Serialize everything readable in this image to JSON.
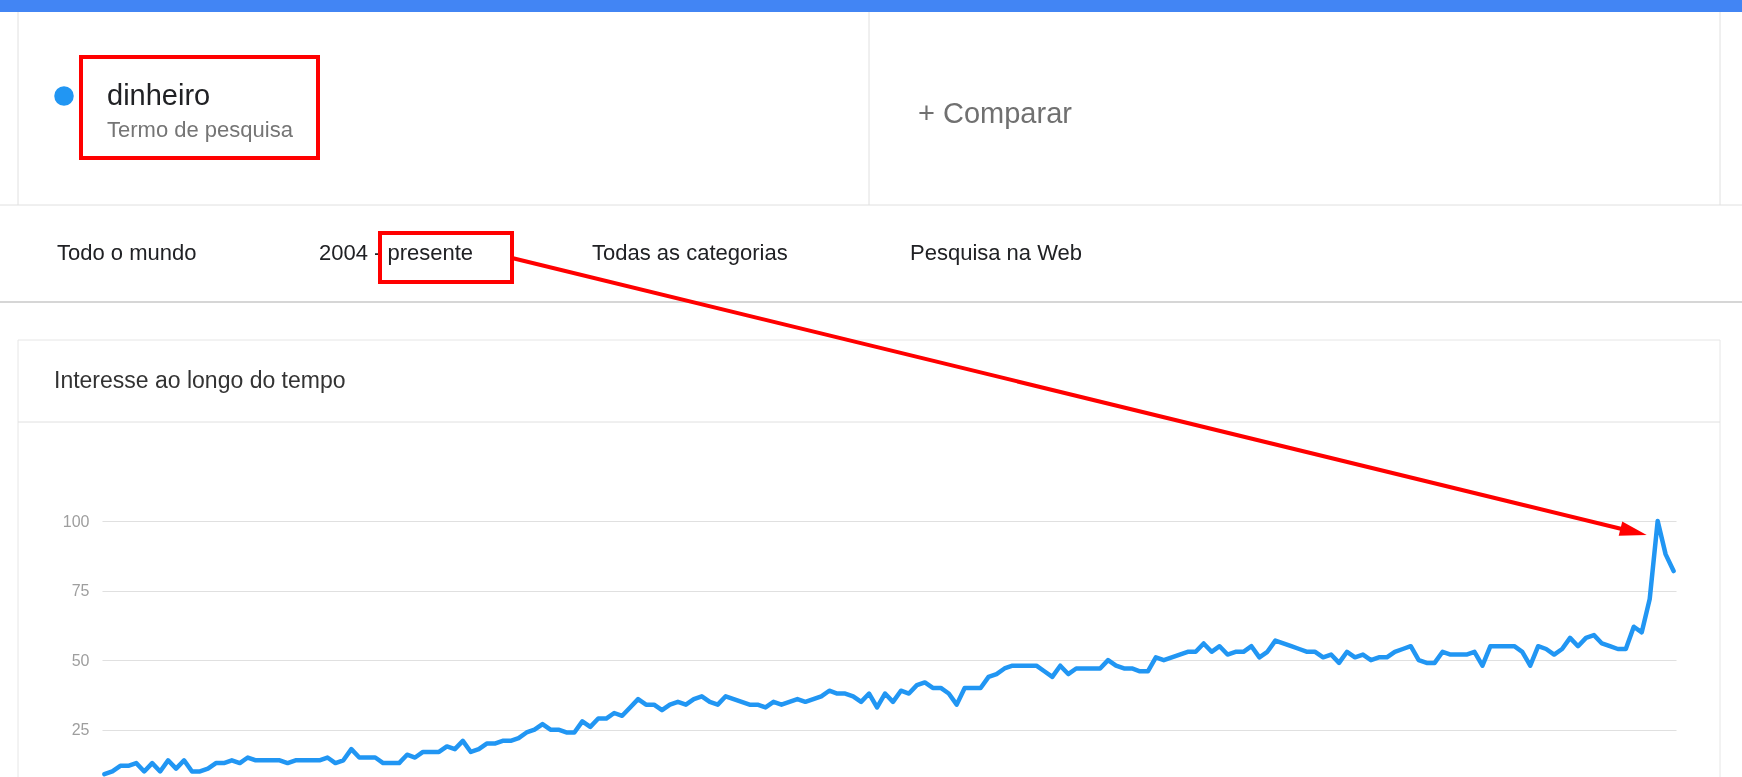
{
  "chart_data": {
    "type": "line",
    "title": "Interesse ao longo do tempo",
    "categories": [
      null,
      null,
      null,
      null,
      null,
      null,
      null,
      null,
      null,
      null,
      null,
      null,
      null,
      null,
      null,
      null,
      null,
      null,
      null,
      null,
      null,
      null,
      null,
      null,
      null,
      null,
      null,
      null,
      null,
      null,
      null,
      null,
      null,
      null,
      null,
      null,
      null,
      null,
      null,
      null,
      null,
      null,
      null,
      null,
      null,
      null,
      null,
      null,
      null,
      null,
      null,
      null,
      null,
      null,
      null,
      null,
      null,
      null,
      null,
      null,
      null,
      null,
      null,
      null,
      null,
      null,
      null,
      null,
      null,
      null,
      null,
      null,
      null,
      null,
      null,
      null,
      null,
      null,
      null,
      null,
      null,
      null,
      null,
      null,
      null,
      null,
      null,
      null,
      null,
      null,
      null,
      null,
      null,
      null,
      null,
      null,
      null,
      null,
      null,
      null,
      null,
      null,
      null,
      null,
      null,
      null,
      null,
      null,
      null,
      null,
      null,
      null,
      null,
      null,
      null,
      null,
      null,
      null,
      null,
      null,
      null,
      null,
      null,
      null,
      null,
      null,
      null,
      null,
      null,
      null,
      null,
      null,
      null,
      null,
      null,
      null,
      null,
      null,
      null,
      null,
      null,
      null,
      null,
      null,
      null,
      null,
      null,
      null,
      null,
      null,
      null,
      null,
      null,
      null,
      null,
      null,
      null,
      null,
      null,
      null,
      null,
      null,
      null,
      null,
      null,
      null,
      null,
      null,
      null,
      null,
      null,
      null,
      null,
      null,
      null,
      null,
      null,
      null,
      null,
      null,
      null,
      null,
      null,
      null,
      null,
      null,
      null,
      null,
      null,
      null,
      null,
      null,
      null,
      null,
      null,
      null,
      null,
      null
    ],
    "series": [
      {
        "name": "dinheiro",
        "color": "#2196f3",
        "values": [
          9,
          10,
          12,
          12,
          13,
          10,
          13,
          10,
          14,
          11,
          14,
          10,
          10,
          11,
          13,
          13,
          14,
          13,
          15,
          14,
          14,
          14,
          14,
          13,
          14,
          14,
          14,
          14,
          15,
          13,
          14,
          18,
          15,
          15,
          15,
          13,
          13,
          13,
          16,
          15,
          17,
          17,
          17,
          19,
          18,
          21,
          17,
          18,
          20,
          20,
          21,
          21,
          22,
          24,
          25,
          27,
          25,
          25,
          24,
          24,
          28,
          26,
          29,
          29,
          31,
          30,
          33,
          36,
          34,
          34,
          32,
          34,
          35,
          34,
          36,
          37,
          35,
          34,
          37,
          36,
          35,
          34,
          34,
          33,
          35,
          34,
          35,
          36,
          35,
          36,
          37,
          39,
          38,
          38,
          37,
          35,
          38,
          33,
          38,
          35,
          39,
          38,
          41,
          42,
          40,
          40,
          38,
          34,
          40,
          40,
          40,
          44,
          45,
          47,
          48,
          48,
          48,
          48,
          46,
          44,
          48,
          45,
          47,
          47,
          47,
          47,
          50,
          48,
          47,
          47,
          46,
          46,
          51,
          50,
          51,
          52,
          53,
          53,
          56,
          53,
          55,
          52,
          53,
          53,
          55,
          51,
          53,
          57,
          56,
          55,
          54,
          53,
          53,
          51,
          52,
          49,
          53,
          51,
          52,
          50,
          51,
          51,
          53,
          54,
          55,
          50,
          49,
          49,
          53,
          52,
          52,
          52,
          53,
          48,
          55,
          55,
          55,
          55,
          53,
          48,
          55,
          54,
          52,
          54,
          58,
          55,
          58,
          59,
          56,
          55,
          54,
          54,
          62,
          60,
          72,
          100,
          88,
          82
        ]
      }
    ],
    "ylim": [
      8,
      100
    ],
    "yticks": [
      25,
      50,
      75,
      100
    ],
    "grid": "y",
    "tick_labels": "y",
    "legend": "top left",
    "annotations": [
      "Termo de pesquisa",
      "+ Comparar",
      "Todo o mundo",
      "2004 - presente",
      "Todas as categorias",
      "Pesquisa na Web"
    ]
  }
}
